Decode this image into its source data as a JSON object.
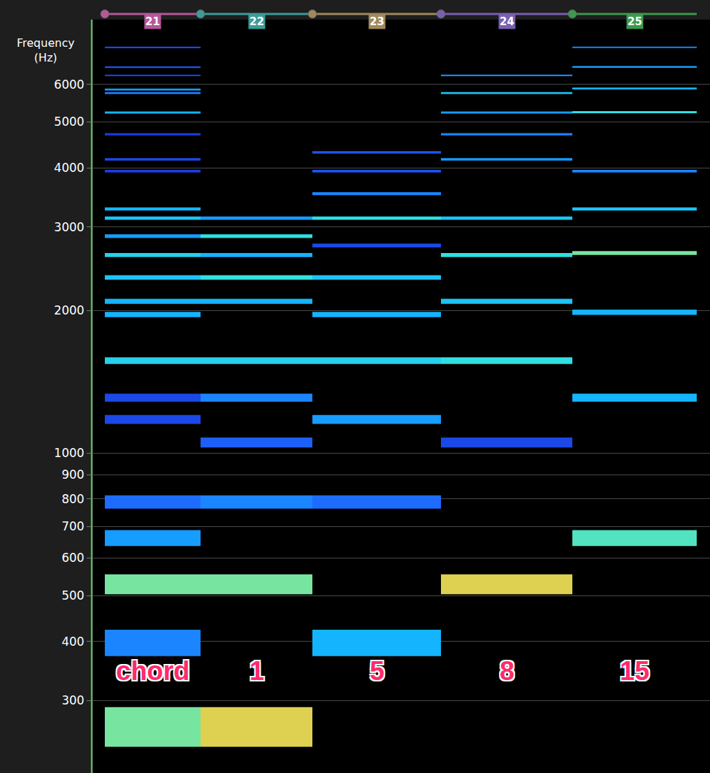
{
  "chart_data": {
    "type": "spectrogram",
    "ylabel": "Frequency\n(Hz)",
    "log": "y",
    "grid": true,
    "tick_labels": "y",
    "xlim": [
      0,
      8.83
    ],
    "ylim": [
      211,
      8220
    ],
    "yticks": [
      300,
      400,
      500,
      600,
      700,
      800,
      900,
      1000,
      2000,
      3000,
      4000,
      5000,
      6000
    ],
    "segments": [
      {
        "name": "21",
        "color": "#b5579a",
        "label": "chord",
        "start": 0.17,
        "end": 1.54,
        "frequencies": [
          264,
          397,
          528,
          661,
          788,
          1177,
          1308,
          1566,
          1960,
          2090,
          2347,
          2616,
          2868,
          3131,
          3273,
          3934,
          4166,
          4708,
          5232,
          5752,
          5850,
          6266,
          6523,
          7178
        ],
        "levels": [
          0.75,
          0.4,
          0.75,
          0.45,
          0.35,
          0.2,
          0.2,
          0.6,
          0.5,
          0.5,
          0.55,
          0.6,
          0.45,
          0.55,
          0.5,
          0.15,
          0.2,
          0.15,
          0.5,
          0.4,
          0.45,
          0.15,
          0.25,
          0.2
        ]
      },
      {
        "name": "22",
        "color": "#3a9d98",
        "label": "1",
        "start": 1.54,
        "end": 3.14,
        "frequencies": [
          264,
          528,
          788,
          1052,
          1308,
          1566,
          2090,
          2347,
          2616,
          2868,
          3131
        ],
        "levels": [
          0.95,
          0.75,
          0.4,
          0.3,
          0.4,
          0.6,
          0.5,
          0.65,
          0.5,
          0.65,
          0.45
        ]
      },
      {
        "name": "23",
        "color": "#a08a5c",
        "label": "5",
        "start": 3.14,
        "end": 4.98,
        "frequencies": [
          397,
          788,
          1177,
          1566,
          1960,
          2347,
          2742,
          3131,
          3527,
          3934,
          4310
        ],
        "levels": [
          0.5,
          0.35,
          0.45,
          0.6,
          0.5,
          0.55,
          0.2,
          0.65,
          0.4,
          0.25,
          0.25
        ]
      },
      {
        "name": "24",
        "color": "#7a5fb0",
        "label": "8",
        "start": 4.98,
        "end": 6.86,
        "frequencies": [
          528,
          1052,
          1566,
          2090,
          2616,
          3131,
          4166,
          4708,
          5232,
          5752,
          6266
        ],
        "levels": [
          0.95,
          0.2,
          0.65,
          0.55,
          0.65,
          0.55,
          0.45,
          0.4,
          0.45,
          0.55,
          0.4
        ]
      },
      {
        "name": "25",
        "color": "#3c9a4c",
        "label": "15",
        "start": 6.86,
        "end": 8.64,
        "frequencies": [
          661,
          1308,
          1981,
          2643,
          3273,
          3934,
          5240,
          5880,
          6530,
          7180
        ],
        "levels": [
          0.7,
          0.5,
          0.5,
          0.75,
          0.55,
          0.4,
          0.65,
          0.5,
          0.45,
          0.4
        ]
      }
    ]
  }
}
